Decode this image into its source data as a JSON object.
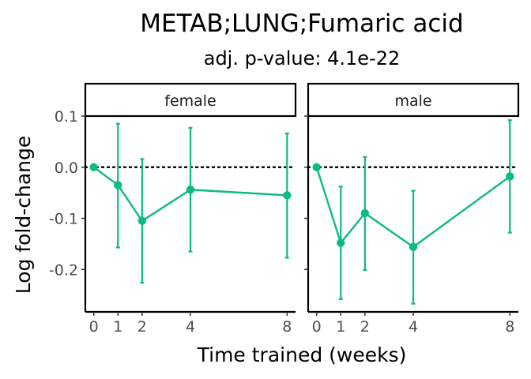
{
  "chart_data": {
    "type": "line",
    "title": "METAB;LUNG;Fumaric acid",
    "subtitle": "adj. p-value: 4.1e-22",
    "xlabel": "Time trained (weeks)",
    "ylabel": "Log fold-change",
    "x_ticks": [
      0,
      1,
      2,
      4,
      8
    ],
    "y_ticks": [
      0.1,
      0.0,
      -0.1,
      -0.2
    ],
    "y_tick_labels": [
      "0.1",
      "0.0",
      "-0.1",
      "-0.2"
    ],
    "xlim": [
      -0.35,
      8.35
    ],
    "ylim": [
      -0.283,
      0.1
    ],
    "reference_line": 0,
    "grid": false,
    "color": "#0dba86",
    "panels": [
      {
        "label": "female",
        "x": [
          0,
          1,
          2,
          4,
          8
        ],
        "y": [
          0.0,
          -0.035,
          -0.105,
          -0.044,
          -0.055
        ],
        "ymin": [
          0.0,
          -0.157,
          -0.226,
          -0.165,
          -0.177
        ],
        "ymax": [
          0.0,
          0.085,
          0.016,
          0.077,
          0.066
        ]
      },
      {
        "label": "male",
        "x": [
          0,
          1,
          2,
          4,
          8
        ],
        "y": [
          0.0,
          -0.148,
          -0.09,
          -0.156,
          -0.018
        ],
        "ymin": [
          0.0,
          -0.258,
          -0.201,
          -0.267,
          -0.128
        ],
        "ymax": [
          0.0,
          -0.038,
          0.02,
          -0.046,
          0.092
        ]
      }
    ]
  }
}
